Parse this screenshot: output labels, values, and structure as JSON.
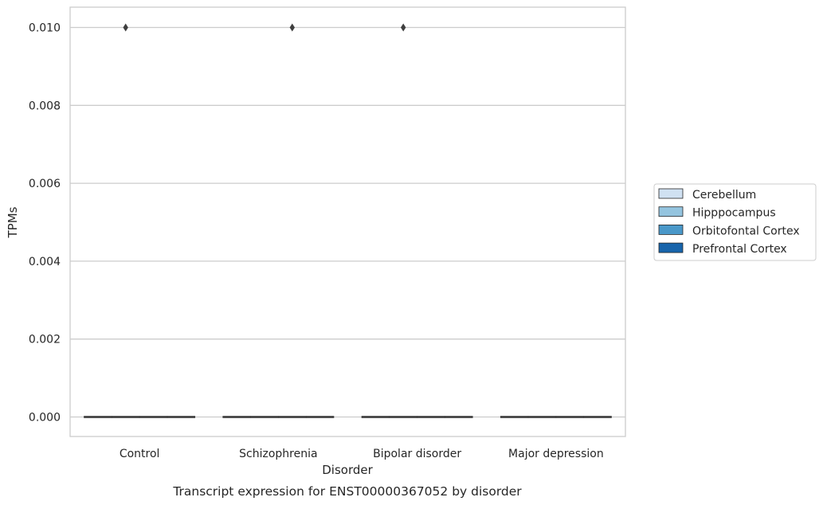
{
  "chart_data": {
    "type": "box",
    "title": "",
    "caption": "Transcript expression for ENST00000367052 by disorder",
    "xlabel": "Disorder",
    "ylabel": "TPMs",
    "categories": [
      "Control",
      "Schizophrenia",
      "Bipolar disorder",
      "Major depression"
    ],
    "ylim": [
      -0.0005,
      0.0105
    ],
    "yticks": [
      "0.000",
      "0.002",
      "0.004",
      "0.006",
      "0.008",
      "0.010"
    ],
    "grid": true,
    "legend_position": "right",
    "series": [
      {
        "name": "Cerebellum",
        "color": "#d0e1f2",
        "boxes": [
          {
            "category": "Control",
            "q1": 0,
            "median": 0,
            "q3": 0,
            "whisker_low": 0,
            "whisker_high": 0,
            "outliers": []
          },
          {
            "category": "Schizophrenia",
            "q1": 0,
            "median": 0,
            "q3": 0,
            "whisker_low": 0,
            "whisker_high": 0,
            "outliers": []
          },
          {
            "category": "Bipolar disorder",
            "q1": 0,
            "median": 0,
            "q3": 0,
            "whisker_low": 0,
            "whisker_high": 0,
            "outliers": []
          },
          {
            "category": "Major depression",
            "q1": 0,
            "median": 0,
            "q3": 0,
            "whisker_low": 0,
            "whisker_high": 0,
            "outliers": []
          }
        ]
      },
      {
        "name": "Hipppocampus",
        "color": "#94c4df",
        "boxes": [
          {
            "category": "Control",
            "q1": 0,
            "median": 0,
            "q3": 0,
            "whisker_low": 0,
            "whisker_high": 0,
            "outliers": [
              0.01
            ]
          },
          {
            "category": "Schizophrenia",
            "q1": 0,
            "median": 0,
            "q3": 0,
            "whisker_low": 0,
            "whisker_high": 0,
            "outliers": []
          },
          {
            "category": "Bipolar disorder",
            "q1": 0,
            "median": 0,
            "q3": 0,
            "whisker_low": 0,
            "whisker_high": 0,
            "outliers": [
              0.01
            ]
          },
          {
            "category": "Major depression",
            "q1": 0,
            "median": 0,
            "q3": 0,
            "whisker_low": 0,
            "whisker_high": 0,
            "outliers": []
          }
        ]
      },
      {
        "name": "Orbitofontal Cortex",
        "color": "#4a98c9",
        "boxes": [
          {
            "category": "Control",
            "q1": 0,
            "median": 0,
            "q3": 0,
            "whisker_low": 0,
            "whisker_high": 0,
            "outliers": []
          },
          {
            "category": "Schizophrenia",
            "q1": 0,
            "median": 0,
            "q3": 0,
            "whisker_low": 0,
            "whisker_high": 0,
            "outliers": [
              0.01
            ]
          },
          {
            "category": "Bipolar disorder",
            "q1": 0,
            "median": 0,
            "q3": 0,
            "whisker_low": 0,
            "whisker_high": 0,
            "outliers": []
          },
          {
            "category": "Major depression",
            "q1": 0,
            "median": 0,
            "q3": 0,
            "whisker_low": 0,
            "whisker_high": 0,
            "outliers": []
          }
        ]
      },
      {
        "name": "Prefrontal Cortex",
        "color": "#1764ab",
        "boxes": [
          {
            "category": "Control",
            "q1": 0,
            "median": 0,
            "q3": 0,
            "whisker_low": 0,
            "whisker_high": 0,
            "outliers": []
          },
          {
            "category": "Schizophrenia",
            "q1": 0,
            "median": 0,
            "q3": 0,
            "whisker_low": 0,
            "whisker_high": 0,
            "outliers": []
          },
          {
            "category": "Bipolar disorder",
            "q1": 0,
            "median": 0,
            "q3": 0,
            "whisker_low": 0,
            "whisker_high": 0,
            "outliers": []
          },
          {
            "category": "Major depression",
            "q1": 0,
            "median": 0,
            "q3": 0,
            "whisker_low": 0,
            "whisker_high": 0,
            "outliers": []
          }
        ]
      }
    ]
  },
  "colors": {
    "grid": "#cccccc",
    "axes_edge": "#cccccc",
    "box_line": "#3f3f3f",
    "text": "#262626"
  }
}
